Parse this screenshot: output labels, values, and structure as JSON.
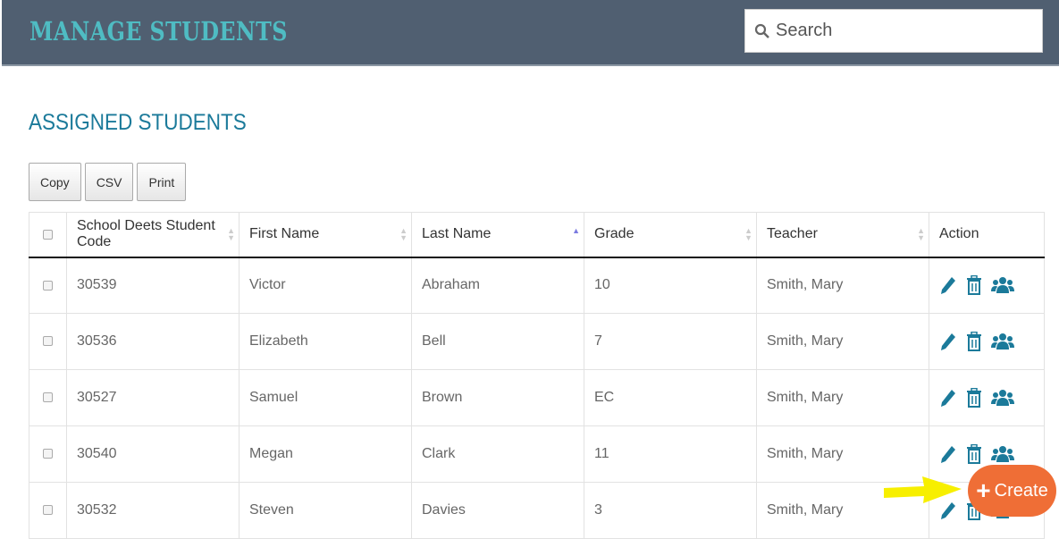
{
  "header": {
    "title": "MANAGE STUDENTS",
    "search_placeholder": "Search"
  },
  "section_title": "ASSIGNED STUDENTS",
  "export_buttons": [
    "Copy",
    "CSV",
    "Print"
  ],
  "table": {
    "columns": [
      "School Deets Student Code",
      "First Name",
      "Last Name",
      "Grade",
      "Teacher",
      "Action"
    ],
    "sorted_column": "Last Name",
    "sort_direction": "ascending",
    "rows": [
      [
        "30539",
        "Victor",
        "Abraham",
        "10",
        "Smith, Mary"
      ],
      [
        "30536",
        "Elizabeth",
        "Bell",
        "7",
        "Smith, Mary"
      ],
      [
        "30527",
        "Samuel",
        "Brown",
        "EC",
        "Smith, Mary"
      ],
      [
        "30540",
        "Megan",
        "Clark",
        "11",
        "Smith, Mary"
      ],
      [
        "30532",
        "Steven",
        "Davies",
        "3",
        "Smith, Mary"
      ]
    ],
    "action_icons": [
      "pencil-icon",
      "trash-icon",
      "users-icon"
    ]
  },
  "create_button": {
    "label": "Create",
    "icon": "plus-icon"
  },
  "colors": {
    "header_bg": "#505f71",
    "title": "#4fbcc3",
    "accent": "#1b7a9a",
    "create": "#ef6e36",
    "annotation_arrow": "#f7ef00"
  }
}
